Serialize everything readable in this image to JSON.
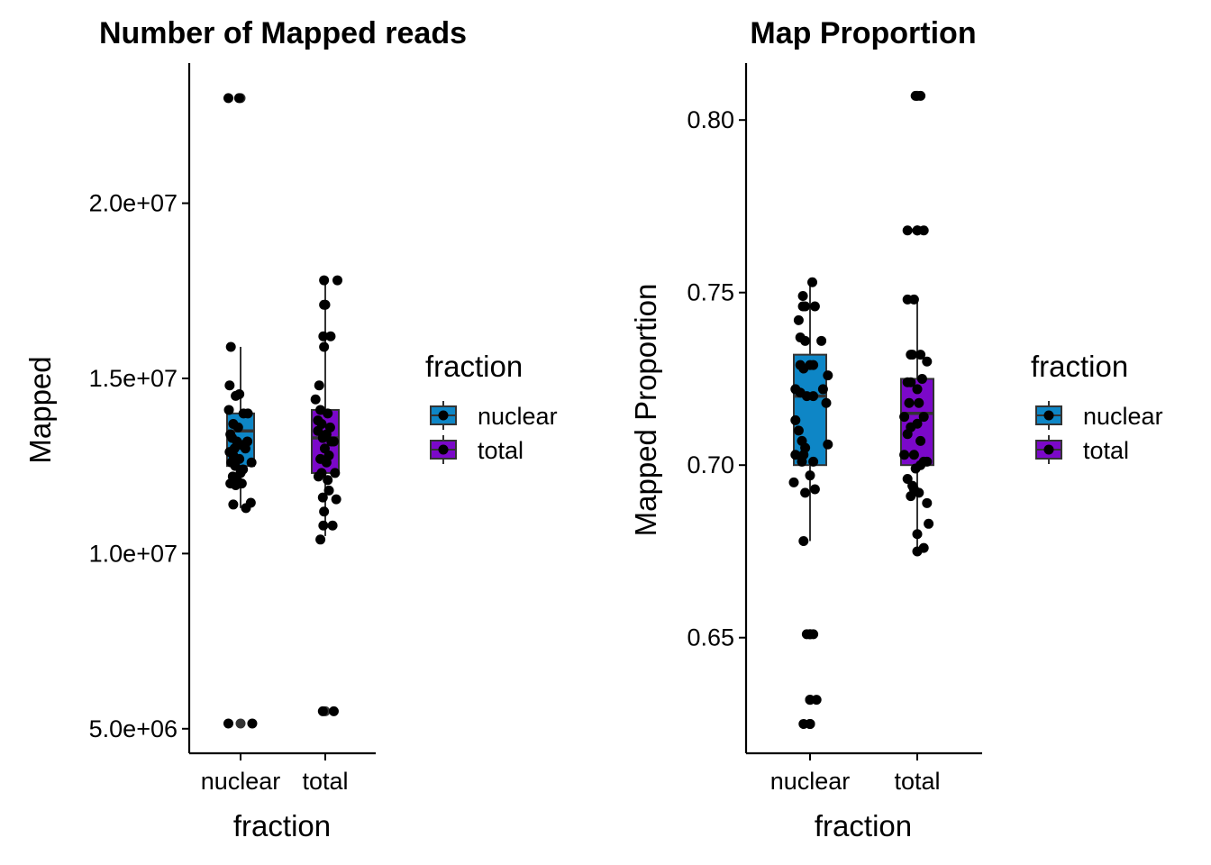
{
  "chart_data": [
    {
      "type": "box",
      "title": "Number of Mapped reads",
      "xlabel": "fraction",
      "ylabel": "Mapped",
      "categories": [
        "nuclear",
        "total"
      ],
      "ylim": [
        4300000,
        24000000
      ],
      "yticks": [
        5000000,
        10000000,
        15000000,
        20000000
      ],
      "ytick_labels": [
        "5.0e+06",
        "1.0e+07",
        "1.5e+07",
        "2.0e+07"
      ],
      "colors": {
        "nuclear": "#0E86C6",
        "total": "#7B08C9"
      },
      "boxes": [
        {
          "category": "nuclear",
          "lower_whisker": 11300000,
          "q1": 12500000,
          "median": 13500000,
          "q3": 14000000,
          "upper_whisker": 15900000,
          "outliers": [
            5150000,
            23000000
          ]
        },
        {
          "category": "total",
          "lower_whisker": 10500000,
          "q1": 12300000,
          "median": 13300000,
          "q3": 14100000,
          "upper_whisker": 17800000,
          "outliers": [
            5500000
          ]
        }
      ],
      "points": {
        "nuclear": [
          [
            -0.5,
            23000000
          ],
          [
            -0.06,
            23000000
          ],
          [
            -0.45,
            14800000
          ],
          [
            -0.4,
            15900000
          ],
          [
            -0.2,
            14500000
          ],
          [
            -0.05,
            14550000
          ],
          [
            0.12,
            14000000
          ],
          [
            0.3,
            14000000
          ],
          [
            -0.48,
            14100000
          ],
          [
            -0.3,
            13700000
          ],
          [
            -0.1,
            13600000
          ],
          [
            -0.42,
            13400000
          ],
          [
            -0.35,
            13300000
          ],
          [
            -0.15,
            13200000
          ],
          [
            0.05,
            13100000
          ],
          [
            0.2,
            13000000
          ],
          [
            -0.45,
            12900000
          ],
          [
            -0.3,
            12800000
          ],
          [
            -0.05,
            12700000
          ],
          [
            -0.38,
            12600000
          ],
          [
            -0.22,
            12500000
          ],
          [
            0.1,
            12400000
          ],
          [
            0.45,
            12600000
          ],
          [
            0.0,
            12300000
          ],
          [
            -0.32,
            12200000
          ],
          [
            -0.15,
            12100000
          ],
          [
            -0.42,
            12000000
          ],
          [
            -0.2,
            11950000
          ],
          [
            0.05,
            12000000
          ],
          [
            -0.3,
            11400000
          ],
          [
            0.22,
            11300000
          ],
          [
            0.42,
            11450000
          ],
          [
            -0.5,
            5150000
          ],
          [
            0.48,
            5150000
          ],
          [
            -0.25,
            13000000
          ],
          [
            0.28,
            13200000
          ]
        ],
        "total": [
          [
            -0.05,
            17800000
          ],
          [
            0.5,
            17800000
          ],
          [
            -0.05,
            17100000
          ],
          [
            0.0,
            17100000
          ],
          [
            -0.08,
            16200000
          ],
          [
            0.22,
            16200000
          ],
          [
            -0.05,
            15900000
          ],
          [
            -0.25,
            14800000
          ],
          [
            -0.4,
            14400000
          ],
          [
            -0.2,
            14100000
          ],
          [
            0.1,
            14000000
          ],
          [
            -0.3,
            13800000
          ],
          [
            -0.15,
            13700000
          ],
          [
            0.2,
            13600000
          ],
          [
            -0.3,
            13500000
          ],
          [
            0.05,
            13400000
          ],
          [
            -0.1,
            13300000
          ],
          [
            0.25,
            13200000
          ],
          [
            0.35,
            13200000
          ],
          [
            -0.02,
            13000000
          ],
          [
            0.15,
            12800000
          ],
          [
            -0.2,
            12700000
          ],
          [
            0.05,
            12600000
          ],
          [
            -0.15,
            12300000
          ],
          [
            -0.28,
            12200000
          ],
          [
            0.4,
            12300000
          ],
          [
            0.1,
            12100000
          ],
          [
            0.15,
            11800000
          ],
          [
            -0.1,
            11600000
          ],
          [
            0.45,
            11550000
          ],
          [
            -0.05,
            11200000
          ],
          [
            0.3,
            10800000
          ],
          [
            -0.08,
            10800000
          ],
          [
            -0.2,
            10400000
          ],
          [
            -0.1,
            5500000
          ],
          [
            0.35,
            5500000
          ]
        ]
      },
      "legend": {
        "title": "fraction",
        "placement": "right",
        "entries": [
          "nuclear",
          "total"
        ]
      }
    },
    {
      "type": "box",
      "title": "Map Proportion",
      "xlabel": "fraction",
      "ylabel": "Mapped Proportion",
      "categories": [
        "nuclear",
        "total"
      ],
      "ylim": [
        0.6165,
        0.8165
      ],
      "yticks": [
        0.65,
        0.7,
        0.75,
        0.8
      ],
      "ytick_labels": [
        "0.65",
        "0.70",
        "0.75",
        "0.80"
      ],
      "colors": {
        "nuclear": "#0E86C6",
        "total": "#7B08C9"
      },
      "boxes": [
        {
          "category": "nuclear",
          "lower_whisker": 0.678,
          "q1": 0.7,
          "median": 0.72,
          "q3": 0.732,
          "upper_whisker": 0.753,
          "outliers": [
            0.651,
            0.651,
            0.632,
            0.632,
            0.625,
            0.625
          ]
        },
        {
          "category": "total",
          "lower_whisker": 0.675,
          "q1": 0.7,
          "median": 0.715,
          "q3": 0.725,
          "upper_whisker": 0.748,
          "outliers": [
            0.768,
            0.768,
            0.807,
            0.807
          ]
        }
      ],
      "points": {
        "nuclear": [
          [
            -0.22,
            0.749
          ],
          [
            0.07,
            0.753
          ],
          [
            -0.35,
            0.742
          ],
          [
            -0.22,
            0.746
          ],
          [
            -0.15,
            0.746
          ],
          [
            0.15,
            0.746
          ],
          [
            -0.3,
            0.737
          ],
          [
            -0.15,
            0.736
          ],
          [
            0.35,
            0.736
          ],
          [
            0.1,
            0.729
          ],
          [
            0.0,
            0.729
          ],
          [
            -0.3,
            0.729
          ],
          [
            -0.2,
            0.728
          ],
          [
            0.55,
            0.726
          ],
          [
            0.4,
            0.722
          ],
          [
            -0.45,
            0.722
          ],
          [
            -0.3,
            0.721
          ],
          [
            -0.1,
            0.72
          ],
          [
            0.1,
            0.72
          ],
          [
            0.5,
            0.718
          ],
          [
            -0.45,
            0.713
          ],
          [
            -0.35,
            0.71
          ],
          [
            -0.25,
            0.707
          ],
          [
            -0.15,
            0.705
          ],
          [
            0.55,
            0.706
          ],
          [
            -0.45,
            0.703
          ],
          [
            -0.2,
            0.703
          ],
          [
            0.1,
            0.701
          ],
          [
            -0.25,
            0.701
          ],
          [
            0.0,
            0.697
          ],
          [
            -0.5,
            0.695
          ],
          [
            0.15,
            0.693
          ],
          [
            -0.15,
            0.692
          ],
          [
            -0.2,
            0.678
          ],
          [
            -0.1,
            0.651
          ],
          [
            0.0,
            0.651
          ],
          [
            0.1,
            0.651
          ],
          [
            0.0,
            0.632
          ],
          [
            0.2,
            0.632
          ],
          [
            -0.2,
            0.625
          ],
          [
            0.0,
            0.625
          ]
        ],
        "total": [
          [
            -0.3,
            0.768
          ],
          [
            0.0,
            0.768
          ],
          [
            0.2,
            0.768
          ],
          [
            -0.05,
            0.807
          ],
          [
            0.1,
            0.807
          ],
          [
            -0.3,
            0.748
          ],
          [
            -0.1,
            0.748
          ],
          [
            0.1,
            0.732
          ],
          [
            -0.2,
            0.732
          ],
          [
            -0.15,
            0.732
          ],
          [
            0.3,
            0.73
          ],
          [
            0.15,
            0.725
          ],
          [
            -0.3,
            0.724
          ],
          [
            -0.2,
            0.724
          ],
          [
            0.0,
            0.722
          ],
          [
            0.05,
            0.718
          ],
          [
            -0.25,
            0.718
          ],
          [
            -0.4,
            0.714
          ],
          [
            0.2,
            0.714
          ],
          [
            0.0,
            0.712
          ],
          [
            -0.2,
            0.711
          ],
          [
            -0.3,
            0.709
          ],
          [
            0.1,
            0.707
          ],
          [
            -0.4,
            0.703
          ],
          [
            -0.1,
            0.703
          ],
          [
            0.2,
            0.701
          ],
          [
            0.3,
            0.701
          ],
          [
            0.1,
            0.7
          ],
          [
            -0.05,
            0.699
          ],
          [
            -0.3,
            0.696
          ],
          [
            -0.15,
            0.694
          ],
          [
            -0.2,
            0.691
          ],
          [
            0.05,
            0.692
          ],
          [
            -0.1,
            0.693
          ],
          [
            0.3,
            0.689
          ],
          [
            0.0,
            0.68
          ],
          [
            0.2,
            0.676
          ],
          [
            0.35,
            0.683
          ],
          [
            0.0,
            0.675
          ]
        ]
      },
      "legend": {
        "title": "fraction",
        "placement": "right",
        "entries": [
          "nuclear",
          "total"
        ]
      }
    }
  ]
}
